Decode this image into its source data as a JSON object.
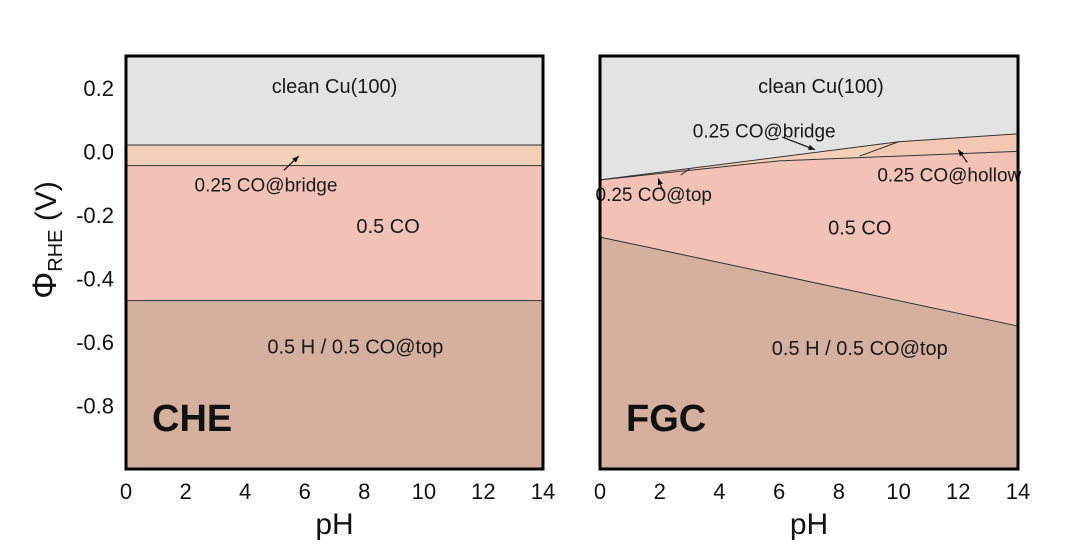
{
  "chart_data": [
    {
      "type": "area",
      "panel_label": "CHE",
      "xlabel": "pH",
      "ylabel": "Φ",
      "ylabel_sub": "RHE",
      "ylabel_unit": "(V)",
      "xlim": [
        0,
        14
      ],
      "ylim": [
        -1.0,
        0.3
      ],
      "xticks": [
        "0",
        "2",
        "4",
        "6",
        "8",
        "10",
        "12",
        "14"
      ],
      "yticks": [
        "0.2",
        "0.0",
        "-0.2",
        "-0.4",
        "-0.6",
        "-0.8"
      ],
      "ytick_values": [
        0.2,
        0.0,
        -0.2,
        -0.4,
        -0.6,
        -0.8
      ],
      "grid": false,
      "regions": [
        {
          "name": "clean Cu(100)",
          "color": "#e4e3e4",
          "upper": [
            [
              0,
              0.3
            ],
            [
              14,
              0.3
            ]
          ],
          "lower": [
            [
              0,
              0.02
            ],
            [
              14,
              0.02
            ]
          ],
          "label_at": [
            7,
            0.2
          ]
        },
        {
          "name": "0.25 CO@bridge",
          "color": "#f2d0b9",
          "upper": [
            [
              0,
              0.02
            ],
            [
              14,
              0.02
            ]
          ],
          "lower": [
            [
              0,
              -0.045
            ],
            [
              14,
              -0.045
            ]
          ],
          "label_at": [
            4.7,
            -0.11
          ]
        },
        {
          "name": "0.5 CO",
          "color": "#f2c2b8",
          "upper": [
            [
              0,
              -0.045
            ],
            [
              14,
              -0.045
            ]
          ],
          "lower": [
            [
              0,
              -0.47
            ],
            [
              14,
              -0.47
            ]
          ],
          "label_at": [
            8.8,
            -0.24
          ]
        },
        {
          "name": "0.5 H / 0.5 CO@top",
          "color": "#d3b09f",
          "upper": [
            [
              0,
              -0.47
            ],
            [
              14,
              -0.47
            ]
          ],
          "lower": [
            [
              0,
              -1.0
            ],
            [
              14,
              -1.0
            ]
          ],
          "label_at": [
            7.7,
            -0.62
          ]
        }
      ],
      "annotations": [
        {
          "text": "0.25 CO@bridge",
          "arrow_from": [
            5.3,
            -0.06
          ],
          "arrow_to": [
            5.8,
            -0.015
          ]
        }
      ]
    },
    {
      "type": "area",
      "panel_label": "FGC",
      "xlabel": "pH",
      "xlim": [
        0,
        14
      ],
      "ylim": [
        -1.0,
        0.3
      ],
      "xticks": [
        "0",
        "2",
        "4",
        "6",
        "8",
        "10",
        "12",
        "14"
      ],
      "grid": false,
      "regions": [
        {
          "name": "clean Cu(100)",
          "color": "#e4e3e4",
          "upper": [
            [
              0,
              0.3
            ],
            [
              14,
              0.3
            ]
          ],
          "lower": [
            [
              0,
              -0.09
            ],
            [
              10,
              0.03
            ],
            [
              14,
              0.055
            ]
          ],
          "label_at": [
            7.4,
            0.2
          ]
        },
        {
          "name": "0.25 CO@bridge",
          "color": "#f2d0b9",
          "upper": [
            [
              0,
              -0.09
            ],
            [
              10,
              0.03
            ],
            [
              14,
              0.055
            ]
          ],
          "lower": [
            [
              0,
              -0.09
            ],
            [
              6,
              -0.03
            ],
            [
              14,
              0.0
            ]
          ],
          "label_at": [
            5.5,
            0.06
          ]
        },
        {
          "name": "0.25 CO@top",
          "color": "#f2d0b9",
          "upper": [
            [
              0,
              -0.09
            ],
            [
              3,
              -0.055
            ]
          ],
          "lower": [
            [
              0,
              -0.09
            ],
            [
              3,
              -0.065
            ]
          ],
          "label_at": [
            1.8,
            -0.14
          ]
        },
        {
          "name": "0.25 CO@hollow",
          "color": "#f2c8b5",
          "upper": [
            [
              10,
              0.03
            ],
            [
              14,
              0.055
            ]
          ],
          "lower": [
            [
              8.7,
              -0.015
            ],
            [
              14,
              0.0
            ]
          ],
          "label_at": [
            11.7,
            -0.08
          ]
        },
        {
          "name": "0.5 CO",
          "color": "#f2c2b8",
          "upper": [
            [
              0,
              -0.09
            ],
            [
              6,
              -0.03
            ],
            [
              14,
              0.0
            ]
          ],
          "lower": [
            [
              0,
              -0.27
            ],
            [
              14,
              -0.55
            ]
          ],
          "label_at": [
            8.7,
            -0.245
          ]
        },
        {
          "name": "0.5 H / 0.5 CO@top",
          "color": "#d3b09f",
          "upper": [
            [
              0,
              -0.27
            ],
            [
              14,
              -0.55
            ]
          ],
          "lower": [
            [
              0,
              -1.0
            ],
            [
              14,
              -1.0
            ]
          ],
          "label_at": [
            8.7,
            -0.625
          ]
        }
      ],
      "boundaries": [
        [
          [
            0,
            -0.09
          ],
          [
            10,
            0.03
          ],
          [
            14,
            0.055
          ]
        ],
        [
          [
            0,
            -0.09
          ],
          [
            6,
            -0.03
          ],
          [
            14,
            0.0
          ]
        ],
        [
          [
            2.7,
            -0.075
          ],
          [
            3,
            -0.055
          ]
        ],
        [
          [
            8.7,
            -0.015
          ],
          [
            10,
            0.03
          ]
        ],
        [
          [
            0,
            -0.27
          ],
          [
            14,
            -0.55
          ]
        ]
      ],
      "annotations": [
        {
          "text": "0.25 CO@bridge",
          "arrow_from": [
            6.1,
            0.045
          ],
          "arrow_to": [
            7.2,
            0.005
          ]
        },
        {
          "text": "0.25 CO@top",
          "arrow_from": [
            2.1,
            -0.125
          ],
          "arrow_to": [
            1.95,
            -0.085
          ]
        },
        {
          "text": "0.25 CO@hollow",
          "arrow_from": [
            12.3,
            -0.035
          ],
          "arrow_to": [
            12.0,
            0.005
          ]
        }
      ]
    }
  ]
}
